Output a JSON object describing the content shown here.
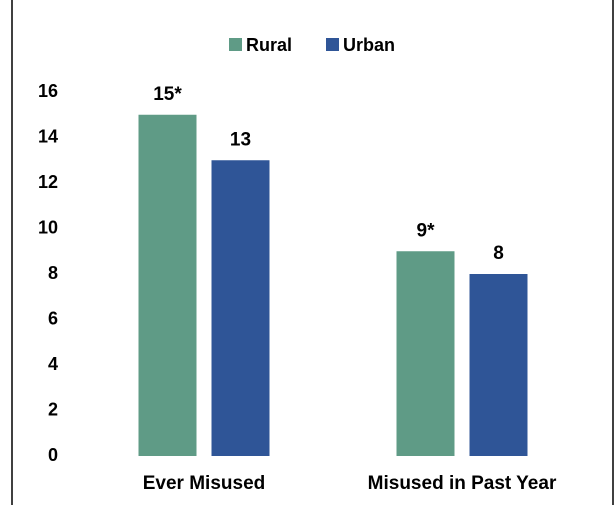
{
  "chart_data": {
    "type": "bar",
    "categories": [
      "Ever Misused",
      "Misused in Past Year"
    ],
    "series": [
      {
        "name": "Rural",
        "color": "#5f9b86",
        "values": [
          15,
          9
        ],
        "value_labels": [
          "15*",
          "9*"
        ]
      },
      {
        "name": "Urban",
        "color": "#2f5597",
        "values": [
          13,
          8
        ],
        "value_labels": [
          "13",
          "8"
        ]
      }
    ],
    "ylim": [
      0,
      16
    ],
    "yticks": [
      0,
      2,
      4,
      6,
      8,
      10,
      12,
      14,
      16
    ],
    "grid": false,
    "legend": "top"
  }
}
